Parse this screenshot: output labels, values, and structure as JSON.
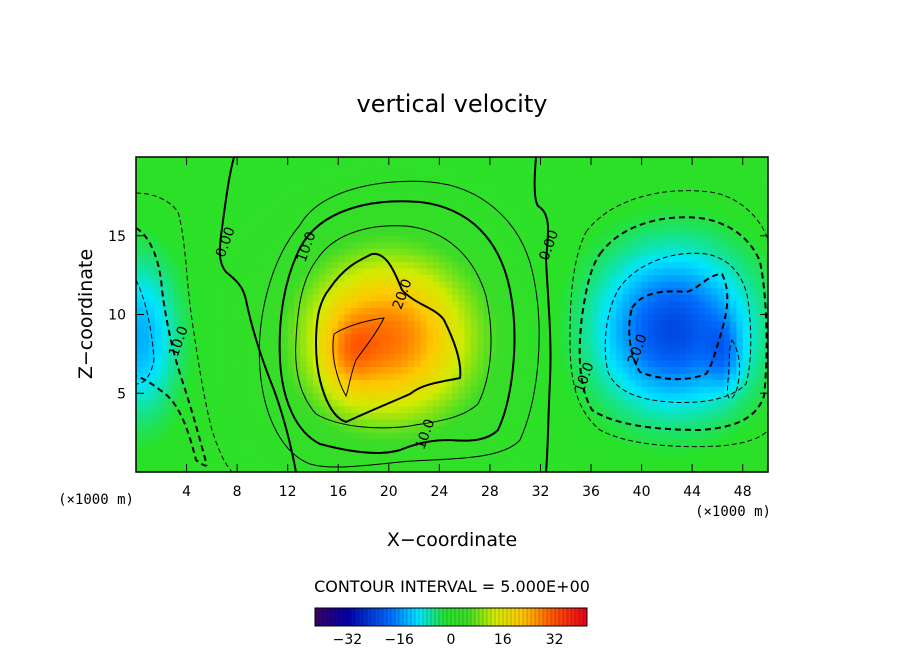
{
  "chart_data": {
    "type": "heatmap",
    "title": "vertical velocity",
    "xlabel": "X−coordinate",
    "ylabel": "Z−coordinate",
    "x_unit": "(×1000 m)",
    "xlim": [
      0,
      50
    ],
    "ylim": [
      0,
      20
    ],
    "x_ticks": [
      4,
      8,
      12,
      16,
      20,
      24,
      28,
      32,
      36,
      40,
      44,
      48
    ],
    "y_ticks": [
      5,
      10,
      15
    ],
    "contour_interval_text": "CONTOUR INTERVAL = 5.000E+00",
    "contour_labels": [
      {
        "text": "0.00",
        "x": 7.4,
        "y": 14.5
      },
      {
        "text": "10.0",
        "x": 13.8,
        "y": 14.2
      },
      {
        "text": "20.0",
        "x": 21.4,
        "y": 11.2
      },
      {
        "text": "10.0",
        "x": 23.2,
        "y": 2.3
      },
      {
        "text": "0.00",
        "x": 33.0,
        "y": 14.3
      },
      {
        "text": "10.0",
        "x": 35.8,
        "y": 5.9
      },
      {
        "text": "20.0",
        "x": 40.0,
        "y": 7.7
      },
      {
        "text": "10.0",
        "x": 3.7,
        "y": 8.2
      }
    ],
    "fields": [
      {
        "name": "updraft",
        "x": 20.0,
        "y": 8.5,
        "sx": 6.5,
        "sy": 5.0,
        "amp": 29
      },
      {
        "name": "updraft-core",
        "x": 16.8,
        "y": 7.5,
        "sx": 2.0,
        "sy": 2.6,
        "amp": 8
      },
      {
        "name": "downdraft-right",
        "x": 42.5,
        "y": 9.0,
        "sx": 6.0,
        "sy": 5.0,
        "amp": -23
      },
      {
        "name": "downdraft-right-core",
        "x": 46.5,
        "y": 7.5,
        "sx": 1.3,
        "sy": 2.2,
        "amp": -7
      },
      {
        "name": "downdraft-left",
        "x": 0.2,
        "y": 8.5,
        "sx": 3.2,
        "sy": 5.0,
        "amp": -14
      }
    ],
    "colorbar": {
      "min": -42,
      "max": 42,
      "ticks": [
        -32,
        -16,
        0,
        16,
        32
      ],
      "tick_labels": [
        "−32",
        "−16",
        "0",
        "16",
        "32"
      ]
    }
  }
}
